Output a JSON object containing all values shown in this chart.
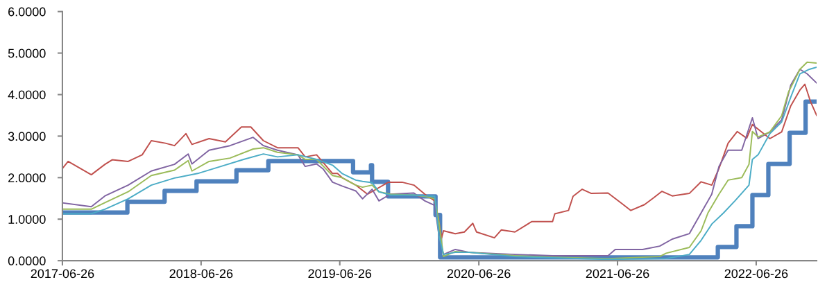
{
  "chart_data": {
    "type": "line",
    "xlim": [
      "2017-06-26",
      "2022-12-02"
    ],
    "xticks": [
      {
        "value": "2017-06-26",
        "label": "2017-06-26"
      },
      {
        "value": "2018-06-26",
        "label": "2018-06-26"
      },
      {
        "value": "2019-06-26",
        "label": "2019-06-26"
      },
      {
        "value": "2020-06-26",
        "label": "2020-06-26"
      },
      {
        "value": "2021-06-26",
        "label": "2021-06-26"
      },
      {
        "value": "2022-06-26",
        "label": "2022-06-26"
      }
    ],
    "ylim": [
      0,
      6
    ],
    "yticks": [
      {
        "value": 0,
        "label": "0.0000"
      },
      {
        "value": 1,
        "label": "1.0000"
      },
      {
        "value": 2,
        "label": "2.0000"
      },
      {
        "value": 3,
        "label": "3.0000"
      },
      {
        "value": 4,
        "label": "4.0000"
      },
      {
        "value": 5,
        "label": "5.0000"
      },
      {
        "value": 6,
        "label": "6.0000"
      }
    ],
    "grid": false,
    "series": [
      {
        "color": "#c0504d",
        "x": [
          "2017-06-26",
          "2017-07-11",
          "2017-09-10",
          "2017-10-16",
          "2017-11-04",
          "2017-12-16",
          "2018-01-22",
          "2018-02-15",
          "2018-03-24",
          "2018-04-17",
          "2018-05-17",
          "2018-06-02",
          "2018-07-17",
          "2018-08-29",
          "2018-10-10",
          "2018-11-04",
          "2018-12-07",
          "2019-01-13",
          "2019-03-08",
          "2019-03-27",
          "2019-04-26",
          "2019-06-07",
          "2019-06-20",
          "2019-07-02",
          "2019-08-07",
          "2019-09-07",
          "2019-11-01",
          "2019-12-07",
          "2020-01-07",
          "2020-02-05",
          "2020-03-02",
          "2020-03-13",
          "2020-03-20",
          "2020-03-25",
          "2020-04-25",
          "2020-05-19",
          "2020-06-10",
          "2020-06-20",
          "2020-08-06",
          "2020-08-24",
          "2020-09-29",
          "2020-11-12",
          "2021-01-06",
          "2021-01-12",
          "2021-02-17",
          "2021-03-01",
          "2021-03-25",
          "2021-04-18",
          "2021-06-01",
          "2021-07-07",
          "2021-07-31",
          "2021-09-05",
          "2021-09-30",
          "2021-10-21",
          "2021-11-17",
          "2022-01-01",
          "2022-02-01",
          "2022-03-01",
          "2022-03-20",
          "2022-04-13",
          "2022-05-07",
          "2022-06-01",
          "2022-06-16",
          "2022-08-01",
          "2022-09-01",
          "2022-09-25",
          "2022-10-19",
          "2022-11-01",
          "2022-11-16",
          "2022-12-02"
        ],
        "values": [
          2.22,
          2.39,
          2.07,
          2.32,
          2.43,
          2.39,
          2.55,
          2.89,
          2.83,
          2.77,
          3.06,
          2.8,
          2.94,
          2.86,
          3.22,
          3.22,
          2.89,
          2.72,
          2.72,
          2.5,
          2.55,
          2.1,
          2.1,
          2.0,
          1.82,
          1.6,
          1.89,
          1.89,
          1.82,
          1.6,
          1.44,
          0.94,
          0.55,
          0.72,
          0.65,
          0.69,
          0.9,
          0.69,
          0.55,
          0.74,
          0.69,
          0.94,
          0.94,
          1.13,
          1.21,
          1.55,
          1.72,
          1.62,
          1.63,
          1.38,
          1.21,
          1.35,
          1.52,
          1.67,
          1.56,
          1.62,
          1.9,
          1.82,
          2.22,
          2.83,
          3.11,
          2.95,
          3.28,
          2.94,
          3.1,
          3.73,
          4.11,
          4.25,
          3.83,
          3.5
        ]
      },
      {
        "color": "#8064a2",
        "x": [
          "2017-06-29",
          "2017-09-10",
          "2017-10-16",
          "2017-12-16",
          "2018-02-15",
          "2018-04-17",
          "2018-05-23",
          "2018-06-02",
          "2018-07-17",
          "2018-09-10",
          "2018-11-10",
          "2018-12-07",
          "2019-01-13",
          "2019-03-08",
          "2019-03-27",
          "2019-04-26",
          "2019-05-14",
          "2019-06-07",
          "2019-07-02",
          "2019-08-07",
          "2019-08-25",
          "2019-09-19",
          "2019-10-07",
          "2019-11-06",
          "2020-01-07",
          "2020-02-05",
          "2020-03-02",
          "2020-03-13",
          "2020-03-25",
          "2020-04-25",
          "2020-06-01",
          "2020-09-29",
          "2021-01-06",
          "2021-06-01",
          "2021-06-20",
          "2021-08-31",
          "2021-10-15",
          "2021-11-17",
          "2022-01-01",
          "2022-02-01",
          "2022-03-01",
          "2022-03-20",
          "2022-04-13",
          "2022-05-19",
          "2022-06-16",
          "2022-07-01",
          "2022-08-01",
          "2022-09-01",
          "2022-09-25",
          "2022-10-19",
          "2022-11-07",
          "2022-12-02"
        ],
        "values": [
          1.39,
          1.3,
          1.56,
          1.82,
          2.16,
          2.32,
          2.57,
          2.33,
          2.66,
          2.77,
          2.97,
          2.77,
          2.66,
          2.55,
          2.27,
          2.33,
          2.2,
          1.89,
          1.8,
          1.68,
          1.49,
          1.72,
          1.44,
          1.6,
          1.63,
          1.44,
          1.33,
          0.6,
          0.15,
          0.27,
          0.2,
          0.15,
          0.12,
          0.12,
          0.27,
          0.27,
          0.35,
          0.52,
          0.65,
          1.15,
          1.6,
          2.27,
          2.66,
          2.66,
          3.44,
          2.94,
          3.1,
          3.39,
          4.23,
          4.61,
          4.5,
          4.28
        ]
      },
      {
        "color": "#9bbb59",
        "x": [
          "2017-06-29",
          "2017-09-10",
          "2017-10-16",
          "2017-12-16",
          "2018-02-15",
          "2018-04-17",
          "2018-05-23",
          "2018-06-02",
          "2018-07-17",
          "2018-09-10",
          "2018-11-10",
          "2018-12-07",
          "2019-01-13",
          "2019-03-08",
          "2019-03-27",
          "2019-04-26",
          "2019-06-07",
          "2019-07-02",
          "2019-08-07",
          "2019-08-25",
          "2019-09-19",
          "2019-10-07",
          "2019-11-06",
          "2020-01-07",
          "2020-02-05",
          "2020-03-02",
          "2020-03-13",
          "2020-03-25",
          "2020-04-25",
          "2020-06-01",
          "2020-09-29",
          "2021-01-06",
          "2021-06-01",
          "2021-10-15",
          "2021-11-01",
          "2022-01-01",
          "2022-02-01",
          "2022-02-19",
          "2022-03-20",
          "2022-04-13",
          "2022-05-19",
          "2022-06-07",
          "2022-06-16",
          "2022-07-01",
          "2022-08-01",
          "2022-09-01",
          "2022-09-19",
          "2022-10-19",
          "2022-11-07",
          "2022-12-02"
        ],
        "values": [
          1.24,
          1.24,
          1.4,
          1.66,
          2.05,
          2.18,
          2.41,
          2.16,
          2.39,
          2.47,
          2.69,
          2.72,
          2.61,
          2.55,
          2.44,
          2.44,
          2.05,
          2.0,
          1.82,
          1.77,
          1.82,
          1.66,
          1.6,
          1.58,
          1.55,
          1.49,
          0.94,
          0.1,
          0.22,
          0.2,
          0.12,
          0.08,
          0.05,
          0.1,
          0.18,
          0.32,
          0.72,
          1.15,
          1.6,
          1.94,
          2.0,
          2.32,
          3.11,
          2.98,
          3.1,
          3.49,
          4.06,
          4.61,
          4.78,
          4.76
        ]
      },
      {
        "color": "#4bacc6",
        "x": [
          "2017-06-29",
          "2017-09-10",
          "2017-10-16",
          "2017-12-16",
          "2018-02-15",
          "2018-04-17",
          "2018-06-17",
          "2018-08-17",
          "2018-10-16",
          "2018-12-07",
          "2019-01-13",
          "2019-03-08",
          "2019-04-26",
          "2019-06-07",
          "2019-07-02",
          "2019-08-07",
          "2019-08-25",
          "2019-09-19",
          "2019-10-07",
          "2019-11-06",
          "2020-01-07",
          "2020-03-02",
          "2020-03-13",
          "2020-03-25",
          "2020-04-25",
          "2020-06-01",
          "2020-09-29",
          "2021-01-06",
          "2021-06-01",
          "2021-11-01",
          "2022-01-01",
          "2022-02-01",
          "2022-03-01",
          "2022-04-01",
          "2022-05-01",
          "2022-06-07",
          "2022-06-16",
          "2022-07-01",
          "2022-08-01",
          "2022-09-01",
          "2022-09-25",
          "2022-10-19",
          "2022-11-13",
          "2022-12-02"
        ],
        "values": [
          1.13,
          1.13,
          1.24,
          1.49,
          1.82,
          1.99,
          2.1,
          2.27,
          2.44,
          2.57,
          2.5,
          2.55,
          2.44,
          2.3,
          2.1,
          1.94,
          1.91,
          1.88,
          1.66,
          1.58,
          1.58,
          1.55,
          0.6,
          0.15,
          0.2,
          0.2,
          0.1,
          0.07,
          0.03,
          0.05,
          0.15,
          0.49,
          0.88,
          1.15,
          1.44,
          1.82,
          2.44,
          2.55,
          3.06,
          3.34,
          3.94,
          4.5,
          4.61,
          4.66
        ]
      },
      {
        "color": "#4f81bd",
        "type": "step",
        "x": [
          "2017-06-26",
          "2017-12-14",
          "2018-03-22",
          "2018-06-14",
          "2018-09-27",
          "2018-12-20",
          "2019-07-31",
          "2019-09-16",
          "2019-09-19",
          "2019-10-31",
          "2020-03-04",
          "2020-03-16",
          "2022-03-17",
          "2022-05-05",
          "2022-06-16",
          "2022-07-28",
          "2022-09-22",
          "2022-11-03",
          "2022-12-02"
        ],
        "values": [
          1.16,
          1.42,
          1.68,
          1.91,
          2.18,
          2.4,
          2.13,
          2.3,
          1.9,
          1.55,
          1.1,
          0.08,
          0.33,
          0.83,
          1.58,
          2.33,
          3.08,
          3.83,
          3.83
        ]
      }
    ]
  }
}
